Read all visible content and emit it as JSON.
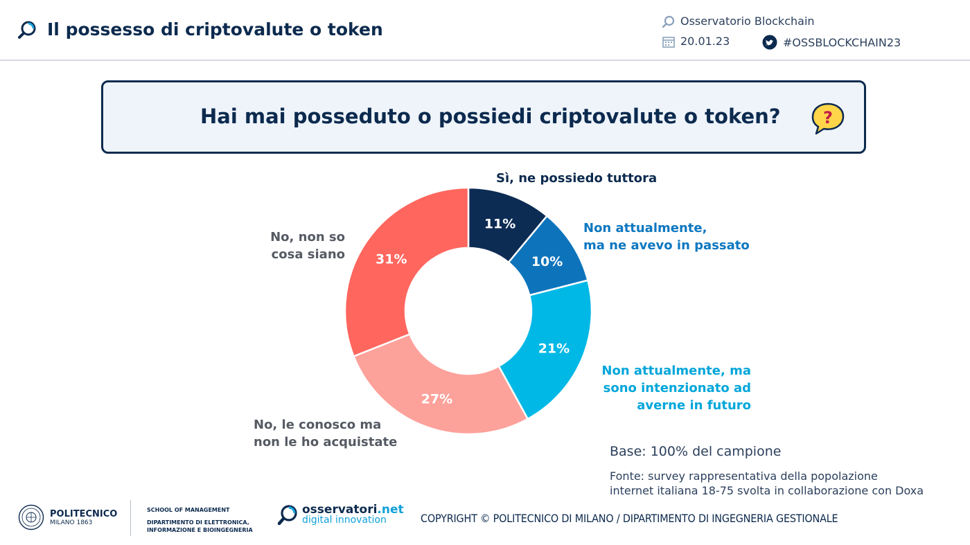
{
  "header": {
    "title": "Il possesso di criptovalute o token",
    "observatory": "Osservatorio Blockchain",
    "date": "20.01.23",
    "hashtag": "#OSSBLOCKCHAIN23"
  },
  "question": "Hai mai posseduto o possiedi criptovalute o token?",
  "chart_data": {
    "type": "pie",
    "style": "donut",
    "title": "Hai mai posseduto o possiedi criptovalute o token?",
    "series": [
      {
        "name": "Sì, ne possiedo tuttora",
        "value": 11,
        "label": "11%",
        "color": "#0d2c54"
      },
      {
        "name": "Non attualmente, ma ne avevo in passato",
        "value": 10,
        "label": "10%",
        "color": "#0d74bc"
      },
      {
        "name": "Non attualmente, ma sono intenzionato ad averne in futuro",
        "value": 21,
        "label": "21%",
        "color": "#00b8e6"
      },
      {
        "name": "No, le conosco ma non le ho acquistate",
        "value": 27,
        "label": "27%",
        "color": "#fda19b"
      },
      {
        "name": "No, non so cosa siano",
        "value": 31,
        "label": "31%",
        "color": "#ff665e"
      }
    ]
  },
  "legend_labels": {
    "s1": "Sì, ne possiedo tuttora",
    "s2_l1": "Non attualmente,",
    "s2_l2": "ma ne avevo in passato",
    "s3_l1": "Non attualmente, ma",
    "s3_l2": "sono intenzionato ad",
    "s3_l3": "averne in futuro",
    "s4_l1": "No, le conosco ma",
    "s4_l2": "non le ho acquistate",
    "s5_l1": "No, non so",
    "s5_l2": "cosa siano"
  },
  "notes": {
    "base": "Base: 100% del campione",
    "source_l1": "Fonte: survey rappresentativa della popolazione",
    "source_l2": "internet italiana 18-75 svolta in collaborazione con Doxa"
  },
  "footer": {
    "polimi_name": "POLITECNICO",
    "polimi_sub": "MILANO 1863",
    "school_l1": "SCHOOL OF MANAGEMENT",
    "school_l2": "DIPARTIMENTO DI ELETTRONICA,",
    "school_l3": "INFORMAZIONE E BIOINGEGNERIA",
    "osserv_name": "osservatori",
    "osserv_tld": ".net",
    "osserv_sub": "digital innovation",
    "copyright": "COPYRIGHT © POLITECNICO DI MILANO / DIPARTIMENTO DI INGEGNERIA GESTIONALE"
  }
}
